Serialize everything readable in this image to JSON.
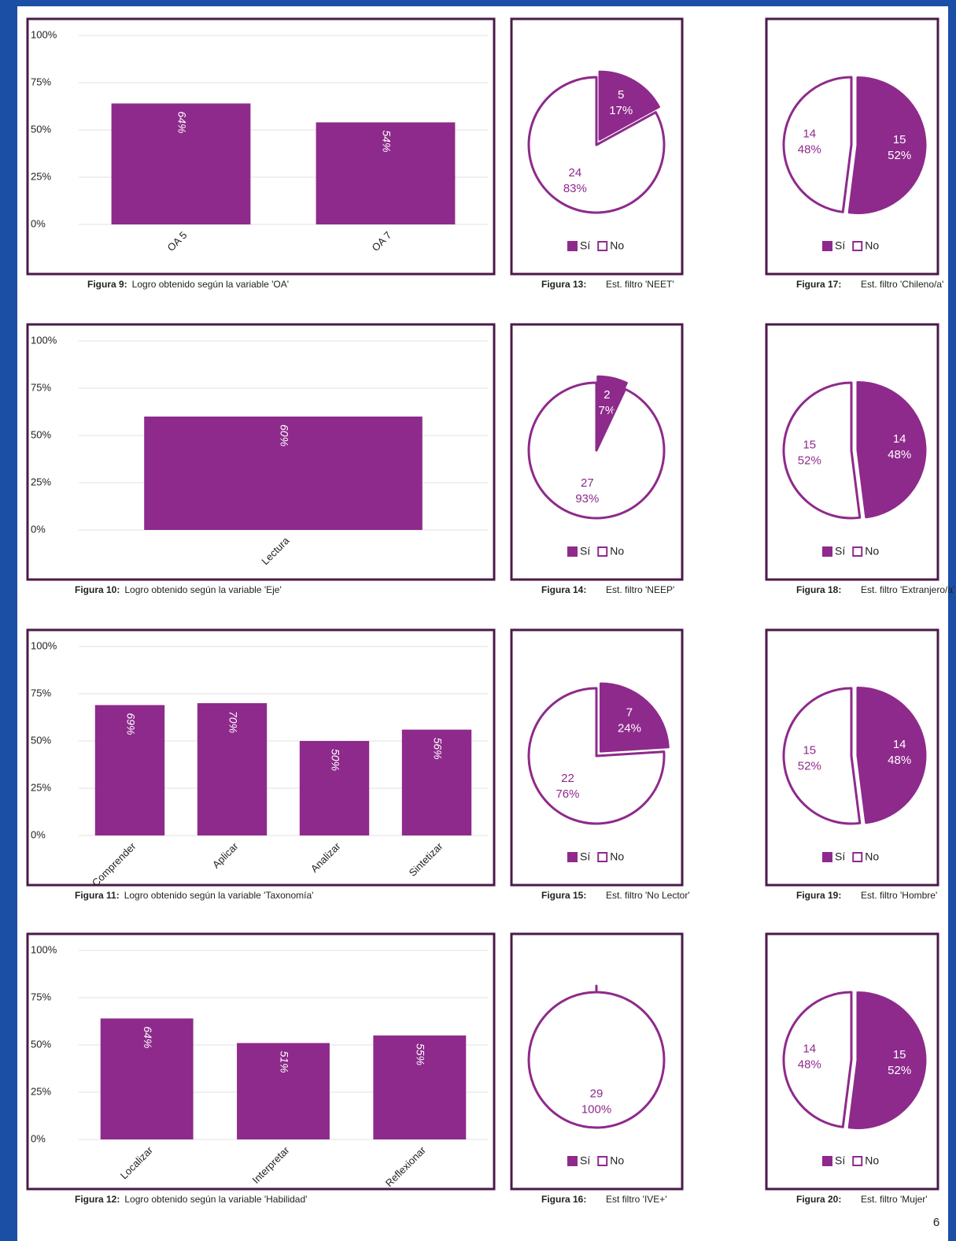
{
  "page_number": "6",
  "chart_data": [
    {
      "type": "bar",
      "caption_label": "Figura 9:",
      "caption": "Logro obtenido según la variable 'OA'",
      "categories": [
        "OA 5",
        "OA 7"
      ],
      "values": [
        64,
        54
      ],
      "value_labels": [
        "64%",
        "54%"
      ],
      "color": "#8e2a8c",
      "ylim": [
        0,
        100
      ],
      "yticks": [
        {
          "value": 0,
          "label": "0%"
        },
        {
          "value": 25,
          "label": "25%"
        },
        {
          "value": 50,
          "label": "50%"
        },
        {
          "value": 75,
          "label": "75%"
        },
        {
          "value": 100,
          "label": "100%"
        }
      ],
      "grid": true
    },
    {
      "type": "bar",
      "caption_label": "Figura 10:",
      "caption": "Logro obtenido según la variable 'Eje'",
      "categories": [
        "Lectura"
      ],
      "values": [
        60
      ],
      "value_labels": [
        "60%"
      ],
      "color": "#8e2a8c",
      "ylim": [
        0,
        100
      ],
      "yticks": [
        {
          "value": 0,
          "label": "0%"
        },
        {
          "value": 25,
          "label": "25%"
        },
        {
          "value": 50,
          "label": "50%"
        },
        {
          "value": 75,
          "label": "75%"
        },
        {
          "value": 100,
          "label": "100%"
        }
      ],
      "grid": true
    },
    {
      "type": "bar",
      "caption_label": "Figura 11:",
      "caption": "Logro obtenido según la variable 'Taxonomía'",
      "categories": [
        "Comprender",
        "Aplicar",
        "Analizar",
        "Sintetizar"
      ],
      "values": [
        69,
        70,
        50,
        56
      ],
      "value_labels": [
        "69%",
        "70%",
        "50%",
        "56%"
      ],
      "color": "#8e2a8c",
      "ylim": [
        0,
        100
      ],
      "yticks": [
        {
          "value": 0,
          "label": "0%"
        },
        {
          "value": 25,
          "label": "25%"
        },
        {
          "value": 50,
          "label": "50%"
        },
        {
          "value": 75,
          "label": "75%"
        },
        {
          "value": 100,
          "label": "100%"
        }
      ],
      "grid": true
    },
    {
      "type": "bar",
      "caption_label": "Figura 12:",
      "caption": "Logro obtenido según la variable 'Habilidad'",
      "categories": [
        "Localizar",
        "Interpretar",
        "Reflexionar"
      ],
      "values": [
        64,
        51,
        55
      ],
      "value_labels": [
        "64%",
        "51%",
        "55%"
      ],
      "color": "#8e2a8c",
      "ylim": [
        0,
        100
      ],
      "yticks": [
        {
          "value": 0,
          "label": "0%"
        },
        {
          "value": 25,
          "label": "25%"
        },
        {
          "value": 50,
          "label": "50%"
        },
        {
          "value": 75,
          "label": "75%"
        },
        {
          "value": 100,
          "label": "100%"
        }
      ],
      "grid": true
    },
    {
      "type": "pie",
      "caption_label": "Figura 13:",
      "caption": "Est. filtro 'NEET'",
      "categories": [
        "Sí",
        "No"
      ],
      "counts": [
        5,
        24
      ],
      "values": [
        17,
        83
      ],
      "value_labels": [
        "17%",
        "83%"
      ],
      "colors": [
        "#8e2a8c",
        "#ffffff"
      ]
    },
    {
      "type": "pie",
      "caption_label": "Figura 14:",
      "caption": "Est. filtro 'NEEP'",
      "categories": [
        "Sí",
        "No"
      ],
      "counts": [
        2,
        27
      ],
      "values": [
        7,
        93
      ],
      "value_labels": [
        "7%",
        "93%"
      ],
      "colors": [
        "#8e2a8c",
        "#ffffff"
      ]
    },
    {
      "type": "pie",
      "caption_label": "Figura 15:",
      "caption": "Est. filtro 'No Lector'",
      "categories": [
        "Sí",
        "No"
      ],
      "counts": [
        7,
        22
      ],
      "values": [
        24,
        76
      ],
      "value_labels": [
        "24%",
        "76%"
      ],
      "colors": [
        "#8e2a8c",
        "#ffffff"
      ]
    },
    {
      "type": "pie",
      "caption_label": "Figura 16:",
      "caption": "Est filtro 'IVE+'",
      "categories": [
        "Sí",
        "No"
      ],
      "counts": [
        0,
        29
      ],
      "values": [
        0,
        100
      ],
      "value_labels": [
        "0%",
        "100%"
      ],
      "colors": [
        "#8e2a8c",
        "#ffffff"
      ]
    },
    {
      "type": "pie",
      "caption_label": "Figura 17:",
      "caption": "Est. filtro 'Chileno/a'",
      "categories": [
        "Sí",
        "No"
      ],
      "counts": [
        15,
        14
      ],
      "values": [
        52,
        48
      ],
      "value_labels": [
        "52%",
        "48%"
      ],
      "colors": [
        "#8e2a8c",
        "#ffffff"
      ]
    },
    {
      "type": "pie",
      "caption_label": "Figura 18:",
      "caption": "Est. filtro 'Extranjero/a'",
      "categories": [
        "Sí",
        "No"
      ],
      "counts": [
        14,
        15
      ],
      "values": [
        48,
        52
      ],
      "value_labels": [
        "48%",
        "52%"
      ],
      "colors": [
        "#8e2a8c",
        "#ffffff"
      ]
    },
    {
      "type": "pie",
      "caption_label": "Figura 19:",
      "caption": "Est. filtro 'Hombre'",
      "categories": [
        "Sí",
        "No"
      ],
      "counts": [
        14,
        15
      ],
      "values": [
        48,
        52
      ],
      "value_labels": [
        "48%",
        "52%"
      ],
      "colors": [
        "#8e2a8c",
        "#ffffff"
      ]
    },
    {
      "type": "pie",
      "caption_label": "Figura 20:",
      "caption": "Est. filtro 'Mujer'",
      "categories": [
        "Sí",
        "No"
      ],
      "counts": [
        15,
        14
      ],
      "values": [
        52,
        48
      ],
      "value_labels": [
        "52%",
        "48%"
      ],
      "colors": [
        "#8e2a8c",
        "#ffffff"
      ]
    }
  ]
}
